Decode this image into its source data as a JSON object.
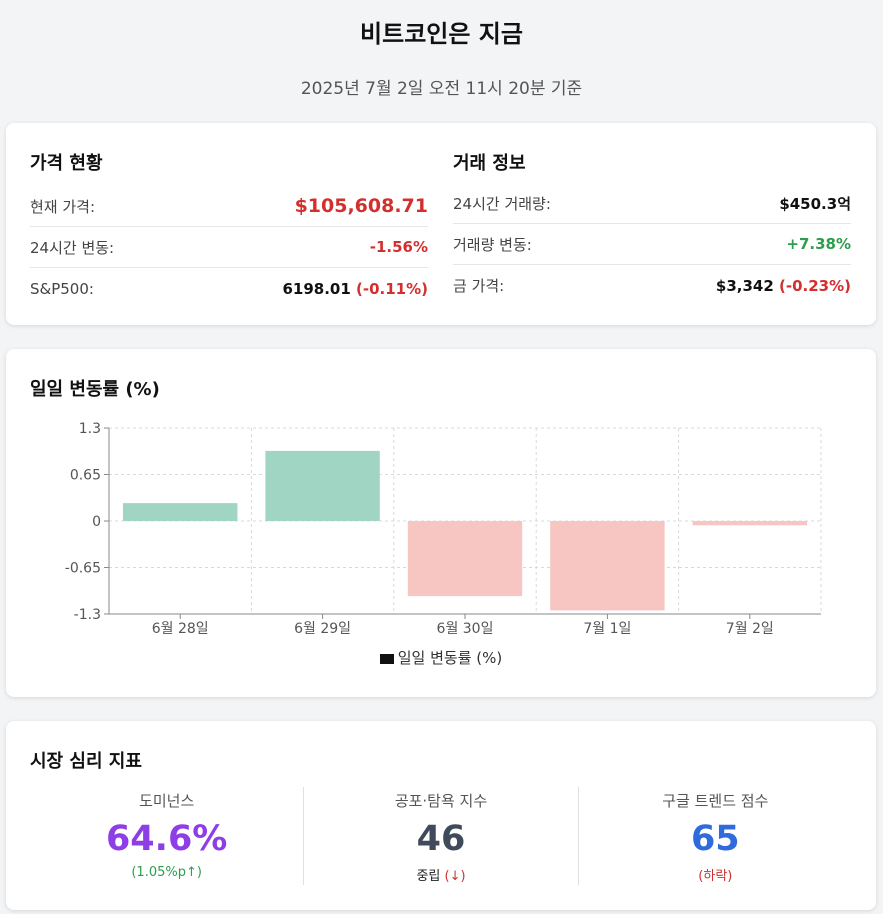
{
  "header": {
    "title": "비트코인은 지금",
    "subtitle": "2025년 7월 2일 오전 11시 20분 기준"
  },
  "price": {
    "title": "가격 현황",
    "rows": [
      {
        "label": "현재 가격:",
        "value": "$105,608.71"
      },
      {
        "label": "24시간 변동:",
        "value": "-1.56%"
      },
      {
        "label": "S&P500:",
        "value": "6198.01",
        "change": "(-0.11%)"
      }
    ]
  },
  "trade": {
    "title": "거래 정보",
    "rows": [
      {
        "label": "24시간 거래량:",
        "value": "$450.3억"
      },
      {
        "label": "거래량 변동:",
        "value": "+7.38%"
      },
      {
        "label": "금 가격:",
        "value": "$3,342",
        "change": "(-0.23%)"
      }
    ]
  },
  "chart_section": {
    "title": "일일 변동률 (%)"
  },
  "chart_data": {
    "type": "bar",
    "categories": [
      "6월 28일",
      "6월 29일",
      "6월 30일",
      "7월 1일",
      "7월 2일"
    ],
    "series": [
      {
        "name": "일일 변동률 (%)",
        "values": [
          0.25,
          0.98,
          -1.05,
          -1.25,
          -0.06
        ]
      }
    ],
    "ylim": [
      -1.3,
      1.3
    ],
    "yticks": [
      "1.3",
      "0.65",
      "0",
      "-0.65",
      "-1.3"
    ],
    "grid": true,
    "legend": "bottom",
    "colors": {
      "positive": "#a0d5c4",
      "negative": "#f7c6c3"
    }
  },
  "sentiment": {
    "title": "시장 심리 지표",
    "metrics": [
      {
        "label": "도미넌스",
        "value": "64.6%",
        "sub": "(1.05%p↑)",
        "color": "#8e3ee6",
        "sub_color": "#2e9d4d"
      },
      {
        "label": "공포·탐욕 지수",
        "value": "46",
        "sub_main": "중립",
        "sub": "(↓)",
        "color": "#3f4b5b",
        "sub_color": "#d32f2f"
      },
      {
        "label": "구글 트렌드 점수",
        "value": "65",
        "sub": "(하락)",
        "color": "#2f6bdd",
        "sub_color": "#d32f2f"
      }
    ]
  }
}
